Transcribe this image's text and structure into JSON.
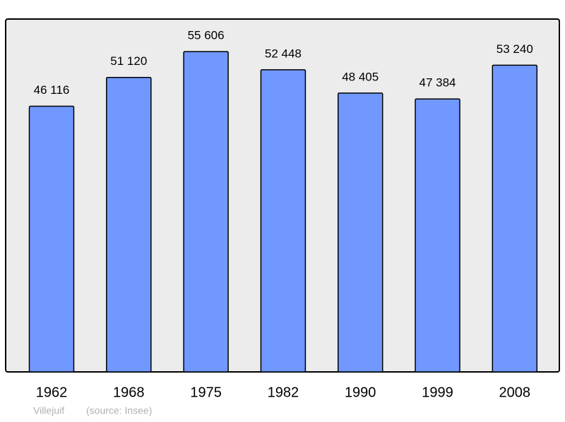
{
  "chart_data": {
    "type": "bar",
    "categories": [
      "1962",
      "1968",
      "1975",
      "1982",
      "1990",
      "1999",
      "2008"
    ],
    "values": [
      46116,
      51120,
      55606,
      52448,
      48405,
      47384,
      53240
    ],
    "value_labels": [
      "46 116",
      "51 120",
      "55 606",
      "52 448",
      "48 405",
      "47 384",
      "53 240"
    ],
    "color": "#7098ff",
    "place": "Villejuif",
    "source": "(source: Insee)"
  }
}
